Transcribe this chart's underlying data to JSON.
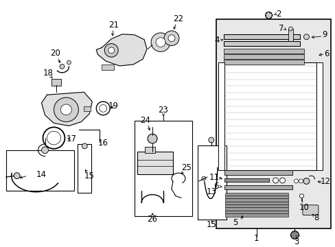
{
  "bg": "#ffffff",
  "lc": "#000000",
  "box_bg": "#e8e8e8",
  "fw": 4.89,
  "fh": 3.6,
  "dpi": 100,
  "fs": 8.5
}
